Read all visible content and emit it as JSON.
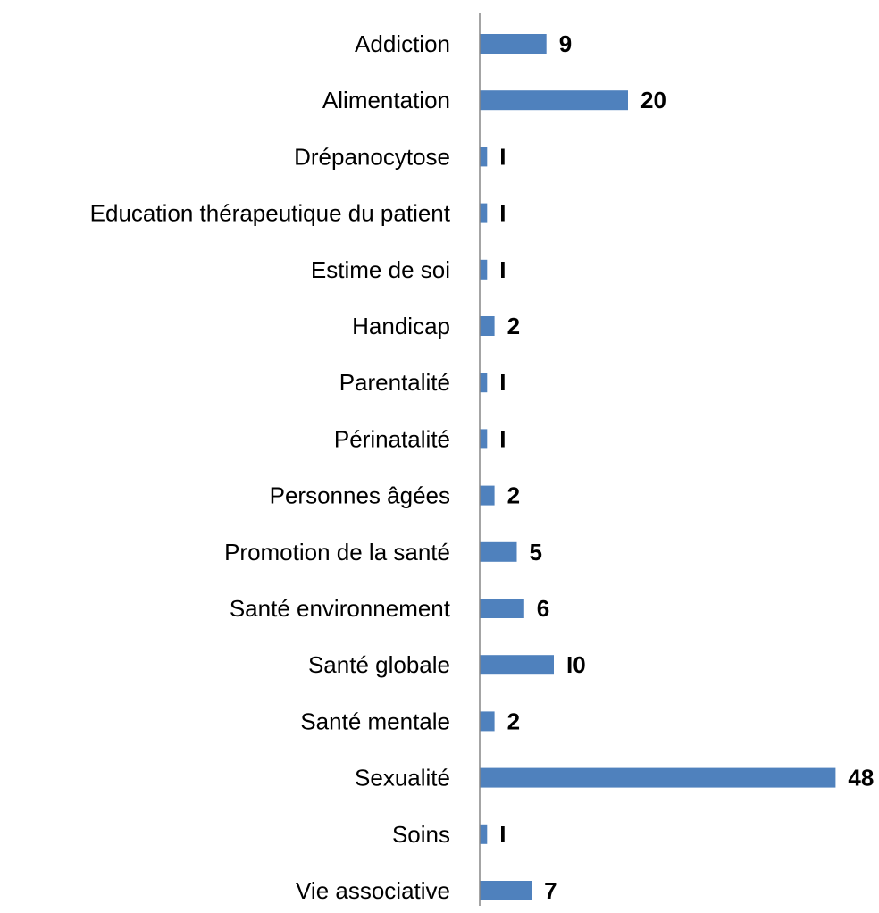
{
  "chart_data": {
    "type": "bar",
    "orientation": "horizontal",
    "title": "",
    "xlabel": "",
    "ylabel": "",
    "categories": [
      "Addiction",
      "Alimentation",
      "Drépanocytose",
      "Education thérapeutique du patient",
      "Estime de soi",
      "Handicap",
      "Parentalité",
      "Périnatalité",
      "Personnes âgées",
      "Promotion de la santé",
      "Santé environnement",
      "Santé globale",
      "Santé mentale",
      "Sexualité",
      "Soins",
      "Vie associative"
    ],
    "values": [
      9,
      20,
      1,
      1,
      1,
      2,
      1,
      1,
      2,
      5,
      6,
      10,
      2,
      48,
      1,
      7
    ],
    "value_labels": [
      "9",
      "20",
      "I",
      "I",
      "I",
      "2",
      "I",
      "I",
      "2",
      "5",
      "6",
      "I0",
      "2",
      "48",
      "I",
      "7"
    ],
    "xlim": [
      0,
      48
    ],
    "grid": false,
    "legend": "none",
    "bar_color": "#4F81BD",
    "axis_color": "#868686"
  }
}
